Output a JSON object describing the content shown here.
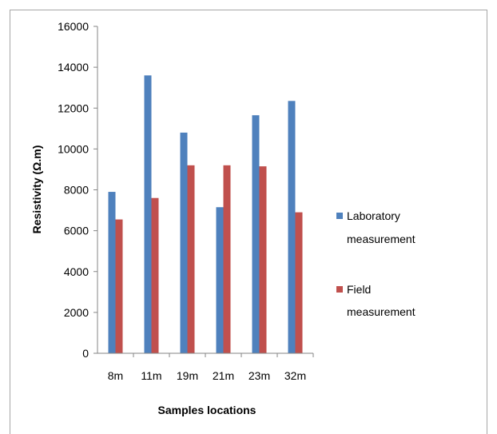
{
  "chart_data": {
    "type": "bar",
    "title": "",
    "xlabel": "Samples locations",
    "ylabel": "Resistivity (Ω.m)",
    "ylim": [
      0,
      16000
    ],
    "yticks": [
      "0",
      "2000",
      "4000",
      "6000",
      "8000",
      "10000",
      "12000",
      "14000",
      "16000"
    ],
    "categories": [
      "8m",
      "11m",
      "19m",
      "21m",
      "23m",
      "32m"
    ],
    "series": [
      {
        "name_line1": "Laboratory",
        "name_line2": "measurement",
        "name": "Laboratory measurement",
        "color": "#4f81bd",
        "values": [
          7900,
          13600,
          10800,
          7150,
          11650,
          12350
        ]
      },
      {
        "name_line1": "Field",
        "name_line2": "measurement",
        "name": "Field measurement",
        "color": "#c0504d",
        "values": [
          6550,
          7600,
          9200,
          9200,
          9150,
          6900
        ]
      }
    ],
    "grid": false,
    "legend_position": "right"
  }
}
